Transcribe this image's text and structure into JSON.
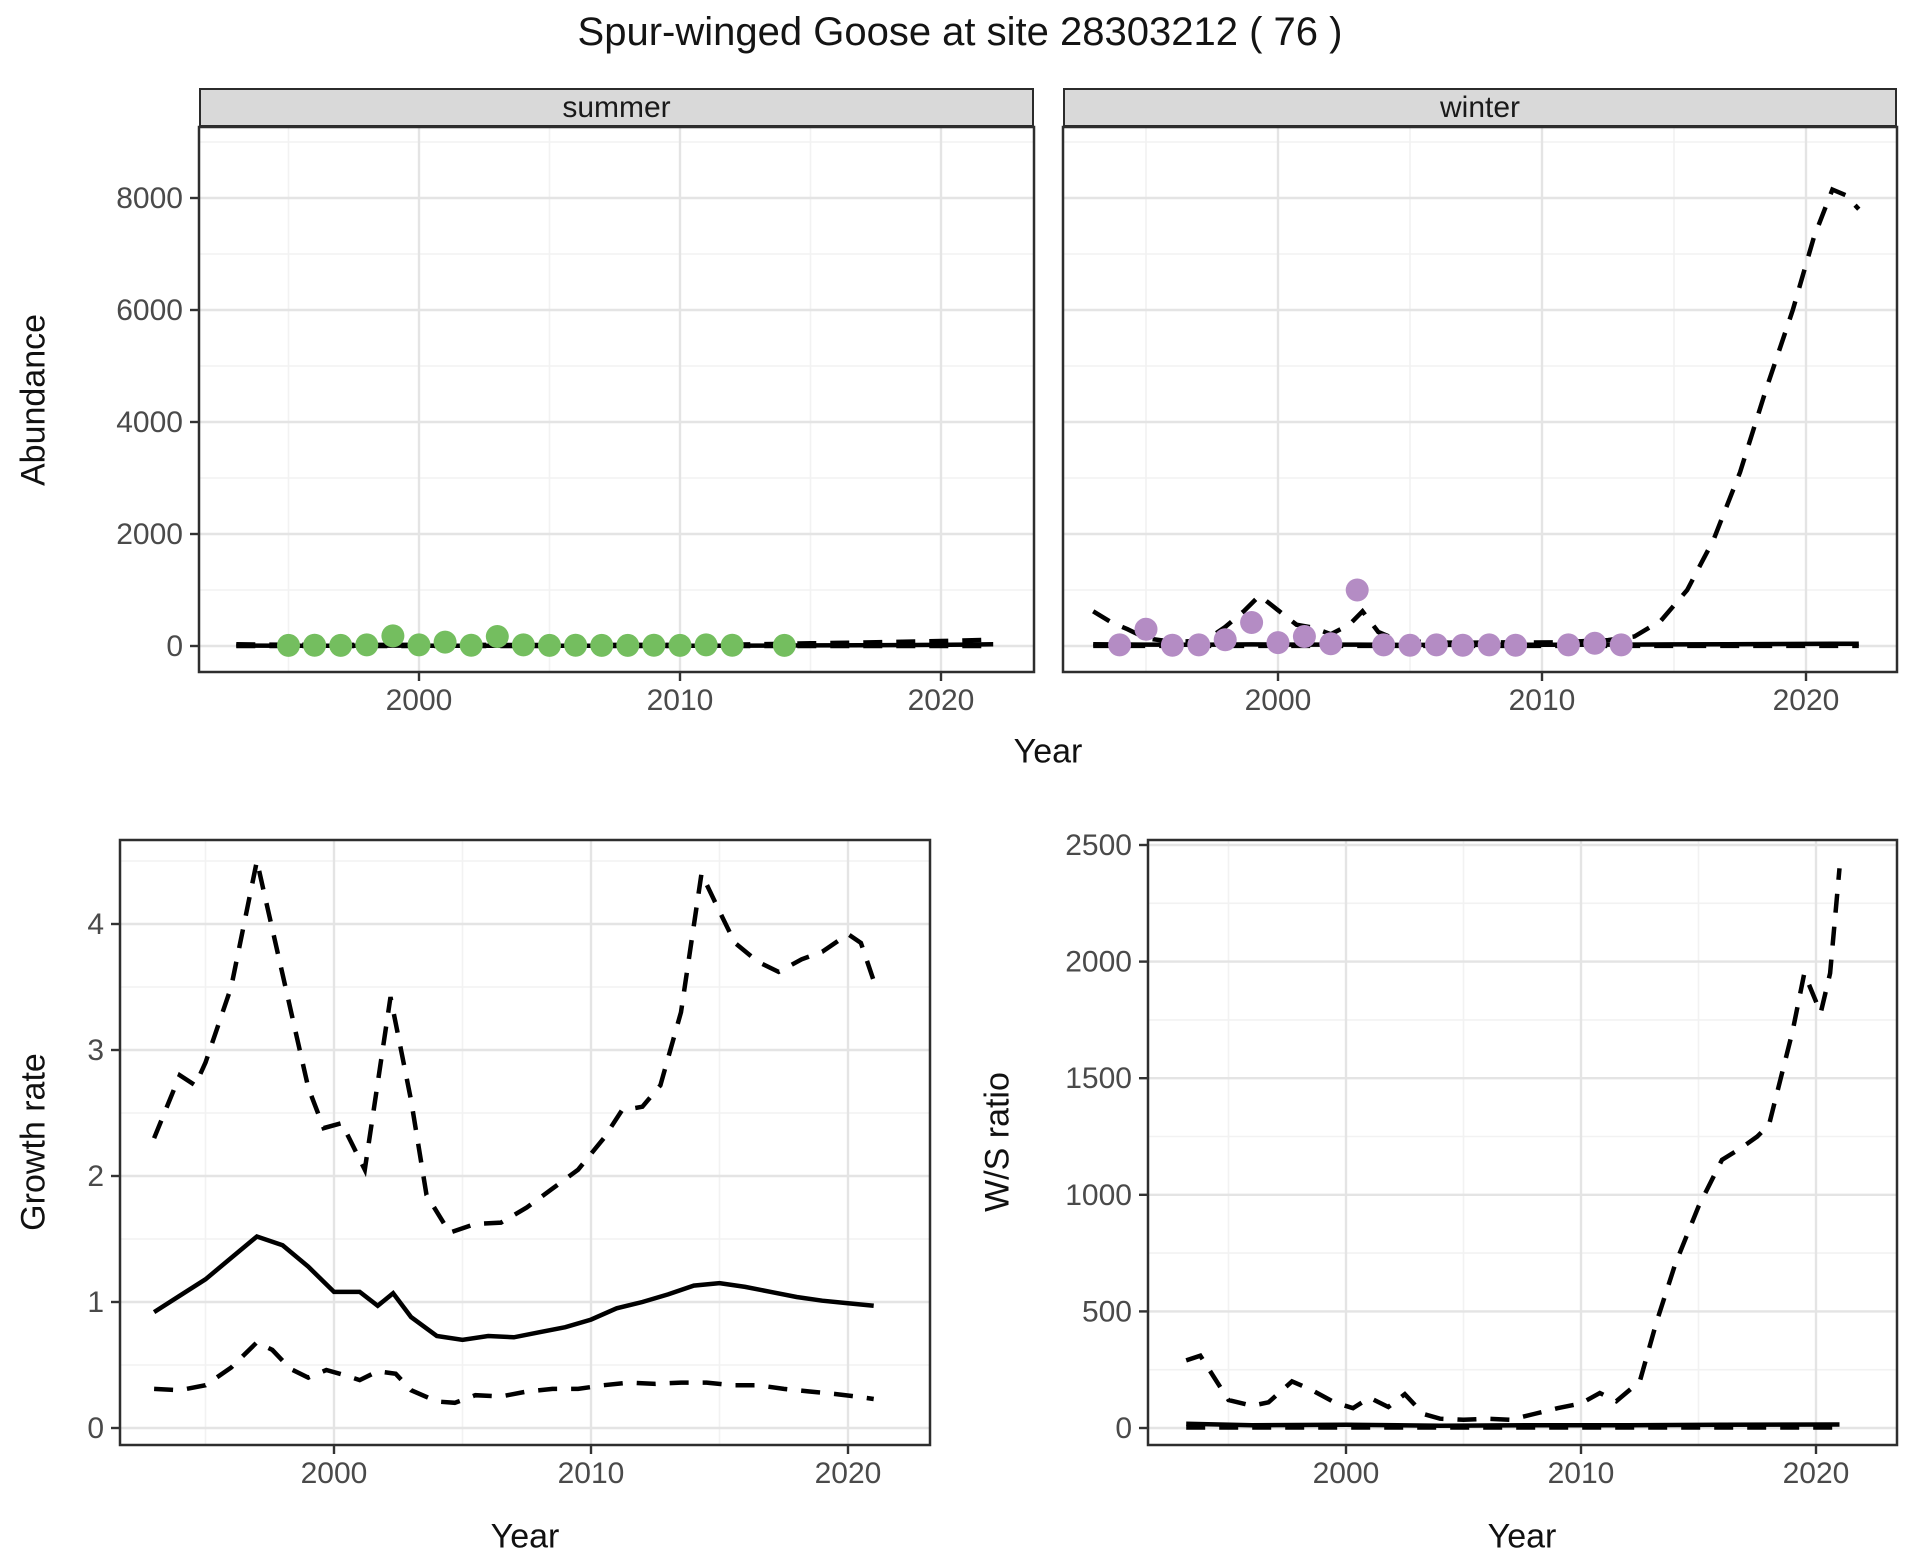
{
  "title": "Spur-winged Goose at site 28303212 ( 76 )",
  "facets": [
    "summer",
    "winter"
  ],
  "axes": {
    "year_label": "Year",
    "abundance_label": "Abundance",
    "growth_label": "Growth rate",
    "ratio_label": "W/S ratio"
  },
  "colors": {
    "summer_points": "#74be5f",
    "winter_points": "#b48cc4",
    "line": "#000000",
    "strip_bg": "#d9d9d9",
    "panel_border": "#2e2e2e",
    "grid_major": "#e4e4e4",
    "grid_minor": "#f2f2f2",
    "tick_text": "#4a4a4a"
  },
  "chart_data": [
    {
      "id": "abundance-summer",
      "type": "line+scatter",
      "facet_label": "summer",
      "xlabel": "Year",
      "ylabel": "Abundance",
      "xlim": [
        1991.6,
        2023.6
      ],
      "ylim": [
        -530,
        9270
      ],
      "xticks": [
        2000,
        2010,
        2020
      ],
      "yticks": [
        0,
        2000,
        4000,
        6000,
        8000
      ],
      "grid": true,
      "legend": false,
      "points": {
        "name": "observed-summer-counts",
        "color_key": "summer_points",
        "x": [
          1995,
          1996,
          1997,
          1998,
          1999,
          2000,
          2001,
          2002,
          2003,
          2004,
          2005,
          2006,
          2007,
          2008,
          2009,
          2010,
          2011,
          2012,
          2014
        ],
        "y": [
          10,
          15,
          10,
          20,
          180,
          20,
          70,
          15,
          170,
          20,
          10,
          15,
          10,
          10,
          15,
          10,
          20,
          15,
          10
        ]
      },
      "lines": [
        {
          "name": "fitted",
          "style": "solid",
          "x": [
            1993,
            1995,
            1997,
            1999,
            2001,
            2003,
            2005,
            2007,
            2009,
            2011,
            2013,
            2015,
            2017,
            2019,
            2021,
            2022
          ],
          "y": [
            8,
            6,
            5,
            8,
            6,
            6,
            5,
            5,
            6,
            6,
            8,
            10,
            14,
            18,
            25,
            30
          ]
        },
        {
          "name": "ci-upper",
          "style": "dashed",
          "x": [
            1993,
            1994,
            1996,
            1998,
            2000,
            2002,
            2004,
            2006,
            2008,
            2010,
            2012,
            2013,
            2014,
            2015,
            2016,
            2017,
            2018,
            2019,
            2020,
            2021,
            2022
          ],
          "y": [
            30,
            25,
            22,
            20,
            22,
            20,
            18,
            18,
            20,
            22,
            25,
            30,
            40,
            48,
            55,
            62,
            72,
            80,
            90,
            100,
            115
          ]
        },
        {
          "name": "ci-lower",
          "style": "dashed",
          "x": [
            1993,
            2022
          ],
          "y": [
            0,
            0
          ]
        }
      ]
    },
    {
      "id": "abundance-winter",
      "type": "line+scatter",
      "facet_label": "winter",
      "xlabel": "Year",
      "ylabel": "Abundance",
      "xlim": [
        1991.9,
        2023.4
      ],
      "ylim": [
        -530,
        9270
      ],
      "xticks": [
        2000,
        2010,
        2020
      ],
      "yticks": [
        0,
        2000,
        4000,
        6000,
        8000
      ],
      "grid": true,
      "legend": false,
      "points": {
        "name": "observed-winter-counts",
        "color_key": "winter_points",
        "x": [
          1994,
          1995,
          1996,
          1997,
          1998,
          1999,
          2000,
          2001,
          2002,
          2003,
          2004,
          2005,
          2006,
          2007,
          2008,
          2009,
          2011,
          2012,
          2013
        ],
        "y": [
          20,
          300,
          15,
          20,
          110,
          420,
          60,
          170,
          40,
          1000,
          20,
          15,
          20,
          15,
          20,
          15,
          20,
          50,
          20
        ]
      },
      "lines": [
        {
          "name": "fitted",
          "style": "solid",
          "x": [
            1993,
            1995,
            1997,
            1999,
            2001,
            2003,
            2005,
            2007,
            2009,
            2011,
            2013,
            2015,
            2017,
            2019,
            2021,
            2022
          ],
          "y": [
            30,
            25,
            22,
            28,
            25,
            25,
            20,
            20,
            22,
            22,
            25,
            28,
            30,
            35,
            40,
            40
          ]
        },
        {
          "name": "ci-upper",
          "style": "dashed",
          "x": [
            1993,
            1993.7,
            1994.3,
            1995,
            1995.7,
            1996.5,
            1997.3,
            1998,
            1998.7,
            1999.3,
            2000,
            2000.7,
            2001.3,
            2002,
            2002.7,
            2003.2,
            2003.8,
            2004.5,
            2005.5,
            2006.5,
            2007.5,
            2008.5,
            2009.5,
            2010.5,
            2011.5,
            2012.5,
            2013.5,
            2014.5,
            2015.5,
            2016.5,
            2017.5,
            2018.5,
            2019.5,
            2020.3,
            2021,
            2021.5,
            2022
          ],
          "y": [
            620,
            420,
            300,
            140,
            95,
            80,
            110,
            340,
            620,
            900,
            640,
            380,
            330,
            210,
            380,
            620,
            250,
            110,
            70,
            60,
            60,
            65,
            60,
            65,
            85,
            105,
            170,
            450,
            1000,
            1900,
            3100,
            4600,
            6000,
            7300,
            8150,
            8050,
            7800
          ]
        },
        {
          "name": "ci-lower",
          "style": "dashed",
          "x": [
            1993,
            2022
          ],
          "y": [
            2,
            2
          ]
        }
      ]
    },
    {
      "id": "growth",
      "type": "line",
      "xlabel": "Year",
      "ylabel": "Growth rate",
      "xlim": [
        1991.7,
        2023.2
      ],
      "ylim": [
        -0.13,
        4.67
      ],
      "xticks": [
        2000,
        2010,
        2020
      ],
      "yticks": [
        0,
        1,
        2,
        3,
        4
      ],
      "grid": true,
      "legend": false,
      "lines": [
        {
          "name": "growth-median",
          "style": "solid",
          "x": [
            1993,
            1994,
            1995,
            1996,
            1997,
            1998,
            1999,
            2000,
            2001,
            2001.7,
            2002.3,
            2003,
            2004,
            2005,
            2006,
            2007,
            2008,
            2009,
            2010,
            2011,
            2012,
            2013,
            2014,
            2015,
            2016,
            2017,
            2018,
            2019,
            2020,
            2021
          ],
          "y": [
            0.92,
            1.05,
            1.18,
            1.35,
            1.52,
            1.45,
            1.28,
            1.08,
            1.08,
            0.97,
            1.07,
            0.88,
            0.73,
            0.7,
            0.73,
            0.72,
            0.76,
            0.8,
            0.86,
            0.95,
            1.0,
            1.06,
            1.13,
            1.15,
            1.12,
            1.08,
            1.04,
            1.01,
            0.99,
            0.97
          ]
        },
        {
          "name": "growth-ci-upper",
          "style": "dashed",
          "x": [
            1993,
            1994,
            1994.6,
            1995,
            1996,
            1997,
            1998,
            1999,
            1999.6,
            2000.3,
            2001.2,
            2002.2,
            2003,
            2003.6,
            2004.5,
            2005.5,
            2006.5,
            2007.5,
            2008.5,
            2009.5,
            2010.5,
            2011.2,
            2012,
            2012.7,
            2013.5,
            2014.3,
            2015,
            2015.6,
            2016.5,
            2017.3,
            2018.2,
            2019,
            2020,
            2020.5,
            2021
          ],
          "y": [
            2.3,
            2.8,
            2.72,
            2.9,
            3.5,
            4.5,
            3.6,
            2.7,
            2.38,
            2.42,
            2.05,
            3.42,
            2.6,
            1.85,
            1.55,
            1.62,
            1.63,
            1.75,
            1.9,
            2.05,
            2.3,
            2.52,
            2.55,
            2.72,
            3.3,
            4.4,
            4.1,
            3.85,
            3.7,
            3.62,
            3.72,
            3.78,
            3.92,
            3.85,
            3.55
          ]
        },
        {
          "name": "growth-ci-lower",
          "style": "dashed",
          "x": [
            1993,
            1994,
            1995,
            1996,
            1997,
            1997.6,
            1998.3,
            1999,
            1999.7,
            2000.4,
            2001,
            2001.7,
            2002.4,
            2003,
            2004,
            2004.7,
            2005.5,
            2006.5,
            2007.5,
            2008.5,
            2009.5,
            2010.5,
            2011.5,
            2012.5,
            2013.5,
            2014.5,
            2015.5,
            2016.5,
            2017.5,
            2018.5,
            2019.5,
            2020.3,
            2021
          ],
          "y": [
            0.31,
            0.3,
            0.34,
            0.48,
            0.68,
            0.62,
            0.47,
            0.4,
            0.46,
            0.42,
            0.38,
            0.45,
            0.43,
            0.3,
            0.21,
            0.2,
            0.26,
            0.25,
            0.29,
            0.31,
            0.31,
            0.34,
            0.36,
            0.35,
            0.36,
            0.36,
            0.34,
            0.34,
            0.31,
            0.29,
            0.27,
            0.25,
            0.23
          ]
        }
      ]
    },
    {
      "id": "ratio",
      "type": "line",
      "xlabel": "Year",
      "ylabel": "W/S ratio",
      "xlim": [
        1991.6,
        2023.4
      ],
      "ylim": [
        -65,
        2520
      ],
      "xticks": [
        2000,
        2010,
        2020
      ],
      "yticks": [
        0,
        500,
        1000,
        1500,
        2000,
        2500
      ],
      "grid": true,
      "legend": false,
      "lines": [
        {
          "name": "ratio-median",
          "style": "solid",
          "x": [
            1993.2,
            1996,
            2000,
            2004,
            2008,
            2012,
            2016,
            2021
          ],
          "y": [
            18,
            12,
            14,
            10,
            12,
            12,
            14,
            15
          ]
        },
        {
          "name": "ratio-ci-upper",
          "style": "dashed",
          "x": [
            1993.2,
            1993.8,
            1995,
            1996,
            1996.7,
            1997.7,
            1998.5,
            1999.5,
            2000.3,
            2001,
            2001.8,
            2002.5,
            2003.3,
            2004,
            2005,
            2006,
            2007,
            2008,
            2009,
            2010,
            2010.8,
            2011.5,
            2012.5,
            2013.2,
            2014,
            2015,
            2016,
            2016.8,
            2017.5,
            2018,
            2019,
            2019.5,
            2020.2,
            2020.6,
            2021
          ],
          "y": [
            290,
            310,
            120,
            95,
            110,
            200,
            165,
            110,
            85,
            130,
            90,
            145,
            60,
            40,
            35,
            40,
            35,
            60,
            85,
            105,
            150,
            115,
            200,
            450,
            700,
            950,
            1150,
            1200,
            1250,
            1300,
            1700,
            1950,
            1780,
            1950,
            2400
          ]
        },
        {
          "name": "ratio-ci-lower",
          "style": "dashed",
          "x": [
            1993.2,
            2021
          ],
          "y": [
            2,
            2
          ]
        }
      ]
    }
  ]
}
